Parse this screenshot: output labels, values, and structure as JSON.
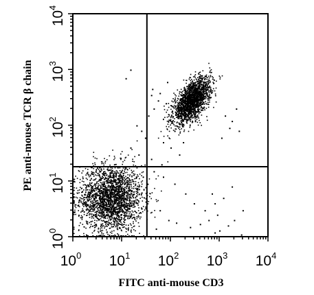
{
  "chart_data": {
    "type": "scatter",
    "xlabel": "FITC anti-mouse CD3",
    "ylabel": "PE anti-mouse TCR β chain",
    "xscale": "log",
    "yscale": "log",
    "xlim": [
      1,
      10000
    ],
    "ylim": [
      1,
      10000
    ],
    "x_ticks": [
      {
        "base": "10",
        "exp": "0",
        "value": 1
      },
      {
        "base": "10",
        "exp": "1",
        "value": 10
      },
      {
        "base": "10",
        "exp": "2",
        "value": 100
      },
      {
        "base": "10",
        "exp": "3",
        "value": 1000
      },
      {
        "base": "10",
        "exp": "4",
        "value": 10000
      }
    ],
    "y_ticks": [
      {
        "base": "10",
        "exp": "0",
        "value": 1
      },
      {
        "base": "10",
        "exp": "1",
        "value": 10
      },
      {
        "base": "10",
        "exp": "2",
        "value": 100
      },
      {
        "base": "10",
        "exp": "3",
        "value": 1000
      },
      {
        "base": "10",
        "exp": "4",
        "value": 10000
      }
    ],
    "gates": {
      "x": 33,
      "y": 18
    },
    "grid": false,
    "legend": "none",
    "populations": [
      {
        "center": [
          6,
          5
        ],
        "spread_log": [
          0.32,
          0.3
        ],
        "count": 2400,
        "tilt": 0.0
      },
      {
        "center": [
          270,
          280
        ],
        "spread_log": [
          0.19,
          0.2
        ],
        "count": 2000,
        "tilt": 0.6
      }
    ],
    "scattered_points": [
      [
        15,
        1000
      ],
      [
        12,
        700
      ],
      [
        40,
        350
      ],
      [
        60,
        380
      ],
      [
        35,
        150
      ],
      [
        45,
        200
      ],
      [
        80,
        250
      ],
      [
        55,
        280
      ],
      [
        20,
        100
      ],
      [
        25,
        80
      ],
      [
        30,
        60
      ],
      [
        15,
        40
      ],
      [
        22,
        30
      ],
      [
        40,
        25
      ],
      [
        70,
        12
      ],
      [
        120,
        9
      ],
      [
        200,
        6
      ],
      [
        300,
        4
      ],
      [
        500,
        3
      ],
      [
        800,
        4
      ],
      [
        1200,
        5
      ],
      [
        600,
        2
      ],
      [
        400,
        1.7
      ],
      [
        900,
        2.5
      ],
      [
        250,
        1.5
      ],
      [
        1500,
        1.6
      ],
      [
        2000,
        2
      ],
      [
        700,
        6
      ],
      [
        1800,
        8
      ],
      [
        1300,
        150
      ],
      [
        1600,
        90
      ],
      [
        2200,
        200
      ],
      [
        1100,
        60
      ],
      [
        90,
        2
      ],
      [
        60,
        3
      ],
      [
        50,
        1.4
      ],
      [
        130,
        1.8
      ],
      [
        3000,
        3
      ],
      [
        1000,
        1.3
      ],
      [
        800,
        1.2
      ],
      [
        100,
        40
      ],
      [
        150,
        30
      ],
      [
        70,
        50
      ],
      [
        180,
        50
      ],
      [
        45,
        15
      ],
      [
        65,
        20
      ],
      [
        27,
        12
      ],
      [
        33,
        9
      ],
      [
        2500,
        80
      ],
      [
        1800,
        120
      ],
      [
        2800,
        1.1
      ],
      [
        85,
        600
      ],
      [
        42,
        450
      ],
      [
        120,
        80
      ]
    ],
    "point_color": "#000000"
  }
}
